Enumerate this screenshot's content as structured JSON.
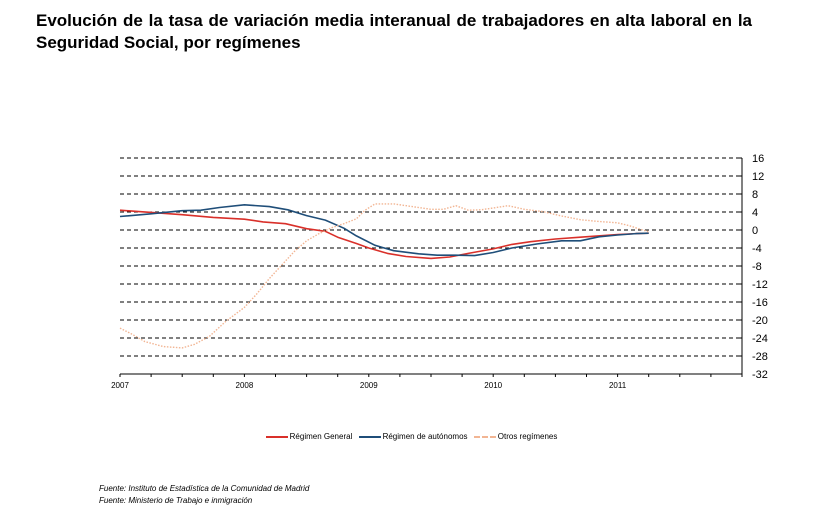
{
  "title": "Evolución de la tasa de variación media interanual de trabajadores en alta laboral en la Seguridad Social, por  regímenes",
  "sources": [
    "Fuente: Instituto de Estadística de la Comunidad de Madrid",
    "Fuente: Ministerio de Trabajo e inmigración"
  ],
  "chart_data": {
    "type": "line",
    "title": "",
    "xlabel": "",
    "ylabel": "",
    "x_range": [
      2007.0,
      2012.0
    ],
    "x_ticks": [
      {
        "value": 2007,
        "label": "2007"
      },
      {
        "value": 2008,
        "label": "2008"
      },
      {
        "value": 2009,
        "label": "2009"
      },
      {
        "value": 2010,
        "label": "2010"
      },
      {
        "value": 2011,
        "label": "2011"
      }
    ],
    "ylim": [
      -32,
      16
    ],
    "y_ticks": [
      {
        "value": 16,
        "label": "16"
      },
      {
        "value": 12,
        "label": "12"
      },
      {
        "value": 8,
        "label": "8"
      },
      {
        "value": 4,
        "label": "4"
      },
      {
        "value": 0,
        "label": "0"
      },
      {
        "value": -4,
        "label": "-4"
      },
      {
        "value": -8,
        "label": "-8"
      },
      {
        "value": -12,
        "label": "-12"
      },
      {
        "value": -16,
        "label": "-16"
      },
      {
        "value": -20,
        "label": "-20"
      },
      {
        "value": -24,
        "label": "-24"
      },
      {
        "value": -28,
        "label": "-28"
      },
      {
        "value": -32,
        "label": "-32"
      }
    ],
    "y_axis_side": "right",
    "grid": "horizontal dashed",
    "legend_position": "bottom",
    "series": [
      {
        "name": "Régimen General",
        "color": "#d9302a",
        "style": "solid",
        "points": [
          [
            2007.0,
            4.4
          ],
          [
            2007.25,
            3.9
          ],
          [
            2007.5,
            3.4
          ],
          [
            2007.75,
            2.8
          ],
          [
            2008.0,
            2.4
          ],
          [
            2008.15,
            1.8
          ],
          [
            2008.33,
            1.4
          ],
          [
            2008.5,
            0.3
          ],
          [
            2008.65,
            -0.3
          ],
          [
            2008.75,
            -1.6
          ],
          [
            2008.9,
            -3.0
          ],
          [
            2009.0,
            -4.0
          ],
          [
            2009.15,
            -5.2
          ],
          [
            2009.3,
            -5.9
          ],
          [
            2009.5,
            -6.3
          ],
          [
            2009.65,
            -6.0
          ],
          [
            2009.8,
            -5.2
          ],
          [
            2010.0,
            -4.2
          ],
          [
            2010.15,
            -3.2
          ],
          [
            2010.3,
            -2.6
          ],
          [
            2010.5,
            -2.0
          ],
          [
            2010.7,
            -1.6
          ],
          [
            2010.9,
            -1.2
          ],
          [
            2011.0,
            -1.0
          ],
          [
            2011.15,
            -0.8
          ],
          [
            2011.25,
            -0.7
          ]
        ]
      },
      {
        "name": "Régimen de autónomos",
        "color": "#1f4e79",
        "style": "solid",
        "points": [
          [
            2007.0,
            3.0
          ],
          [
            2007.25,
            3.6
          ],
          [
            2007.5,
            4.3
          ],
          [
            2007.65,
            4.4
          ],
          [
            2007.8,
            5.0
          ],
          [
            2008.0,
            5.6
          ],
          [
            2008.2,
            5.2
          ],
          [
            2008.35,
            4.5
          ],
          [
            2008.5,
            3.2
          ],
          [
            2008.65,
            2.2
          ],
          [
            2008.8,
            0.4
          ],
          [
            2008.9,
            -1.3
          ],
          [
            2009.05,
            -3.4
          ],
          [
            2009.2,
            -4.6
          ],
          [
            2009.4,
            -5.3
          ],
          [
            2009.55,
            -5.6
          ],
          [
            2009.7,
            -5.6
          ],
          [
            2009.85,
            -5.7
          ],
          [
            2010.0,
            -5.0
          ],
          [
            2010.15,
            -4.0
          ],
          [
            2010.35,
            -3.1
          ],
          [
            2010.55,
            -2.4
          ],
          [
            2010.7,
            -2.4
          ],
          [
            2010.85,
            -1.5
          ],
          [
            2011.0,
            -1.1
          ],
          [
            2011.15,
            -0.8
          ],
          [
            2011.25,
            -0.7
          ]
        ]
      },
      {
        "name": "Otros regímenes",
        "color": "#f2b593",
        "style": "dotted",
        "points": [
          [
            2007.0,
            -21.8
          ],
          [
            2007.1,
            -23.2
          ],
          [
            2007.2,
            -24.8
          ],
          [
            2007.35,
            -25.9
          ],
          [
            2007.5,
            -26.2
          ],
          [
            2007.6,
            -25.4
          ],
          [
            2007.72,
            -23.6
          ],
          [
            2007.85,
            -20.3
          ],
          [
            2008.0,
            -17.2
          ],
          [
            2008.1,
            -14.2
          ],
          [
            2008.2,
            -10.8
          ],
          [
            2008.3,
            -7.8
          ],
          [
            2008.4,
            -4.8
          ],
          [
            2008.5,
            -2.4
          ],
          [
            2008.6,
            -0.8
          ],
          [
            2008.7,
            0.5
          ],
          [
            2008.8,
            1.4
          ],
          [
            2008.9,
            2.5
          ],
          [
            2008.97,
            4.4
          ],
          [
            2009.05,
            5.8
          ],
          [
            2009.2,
            5.8
          ],
          [
            2009.35,
            5.2
          ],
          [
            2009.5,
            4.6
          ],
          [
            2009.6,
            4.6
          ],
          [
            2009.7,
            5.4
          ],
          [
            2009.8,
            4.4
          ],
          [
            2009.9,
            4.5
          ],
          [
            2010.0,
            4.9
          ],
          [
            2010.12,
            5.4
          ],
          [
            2010.25,
            4.6
          ],
          [
            2010.4,
            4.1
          ],
          [
            2010.55,
            3.1
          ],
          [
            2010.7,
            2.3
          ],
          [
            2010.85,
            1.9
          ],
          [
            2011.0,
            1.6
          ],
          [
            2011.1,
            0.9
          ],
          [
            2011.2,
            0.0
          ],
          [
            2011.25,
            -0.4
          ]
        ]
      }
    ]
  }
}
